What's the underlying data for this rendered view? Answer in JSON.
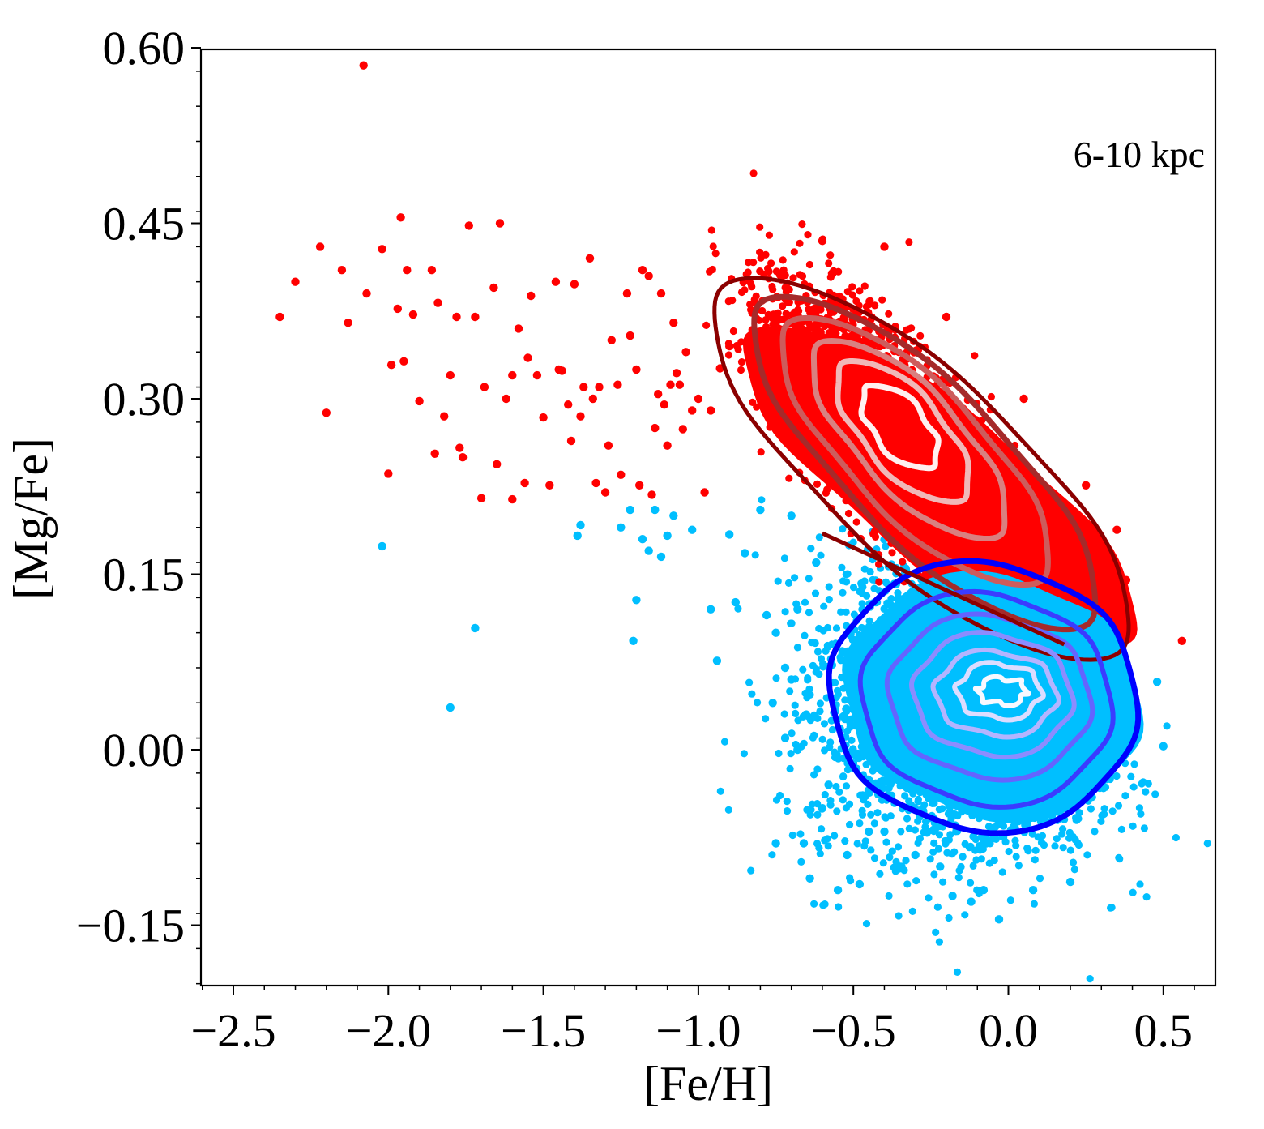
{
  "chart_data": {
    "type": "scatter",
    "title": "",
    "xlabel": "[Fe/H]",
    "ylabel": "[Mg/Fe]",
    "xlim": [
      -2.6,
      0.7
    ],
    "ylim": [
      -0.2,
      0.6
    ],
    "x_ticks": [
      -2.5,
      -2.0,
      -1.5,
      -1.0,
      -0.5,
      0.0,
      0.5
    ],
    "x_tick_labels": [
      "−2.5",
      "−2.0",
      "−1.5",
      "−1.0",
      "−0.5",
      "0.0",
      "0.5"
    ],
    "y_ticks": [
      -0.15,
      0.0,
      0.15,
      0.3,
      0.45,
      0.6
    ],
    "y_tick_labels": [
      "−0.15",
      "0.00",
      "0.15",
      "0.30",
      "0.45",
      "0.60"
    ],
    "grid": false,
    "legend": "none",
    "annotation": "6-10 kpc",
    "colors": {
      "high_alpha_points": "#ff0000",
      "low_alpha_points": "#00bfff",
      "high_alpha_contours": [
        "#8b0000",
        "#a52a2a",
        "#cd5c5c",
        "#d98080",
        "#f0b8b8",
        "#fff0f0"
      ],
      "low_alpha_contours": [
        "#0000ff",
        "#3b3bff",
        "#6464ff",
        "#8c8cff",
        "#b4b4ff",
        "#dcdcff",
        "#f8f8ff"
      ],
      "divider_line": "#8b0000"
    },
    "series": [
      {
        "color": "#ff0000",
        "points": [
          [
            -2.08,
            0.585
          ],
          [
            -2.35,
            0.37
          ],
          [
            -2.3,
            0.4
          ],
          [
            -2.22,
            0.43
          ],
          [
            -2.2,
            0.288
          ],
          [
            -2.15,
            0.41
          ],
          [
            -2.13,
            0.365
          ],
          [
            -2.07,
            0.39
          ],
          [
            -2.02,
            0.428
          ],
          [
            -1.99,
            0.329
          ],
          [
            -1.97,
            0.377
          ],
          [
            -1.96,
            0.455
          ],
          [
            -1.94,
            0.41
          ],
          [
            -1.92,
            0.372
          ],
          [
            -1.9,
            0.298
          ],
          [
            -1.86,
            0.41
          ],
          [
            -1.84,
            0.382
          ],
          [
            -1.82,
            0.285
          ],
          [
            -1.8,
            0.32
          ],
          [
            -1.78,
            0.37
          ],
          [
            -1.76,
            0.25
          ],
          [
            -1.74,
            0.448
          ],
          [
            -1.72,
            0.37
          ],
          [
            -1.69,
            0.31
          ],
          [
            -1.66,
            0.395
          ],
          [
            -1.64,
            0.45
          ],
          [
            -1.62,
            0.3
          ],
          [
            -1.6,
            0.32
          ],
          [
            -1.58,
            0.36
          ],
          [
            -1.56,
            0.228
          ],
          [
            -1.54,
            0.388
          ],
          [
            -1.52,
            0.32
          ],
          [
            -1.5,
            0.284
          ],
          [
            -1.48,
            0.226
          ],
          [
            -1.46,
            0.4
          ],
          [
            -1.44,
            0.324
          ],
          [
            -1.42,
            0.295
          ],
          [
            -1.4,
            0.398
          ],
          [
            -1.37,
            0.31
          ],
          [
            -1.35,
            0.42
          ],
          [
            -1.34,
            0.3
          ],
          [
            -1.32,
            0.31
          ],
          [
            -1.3,
            0.22
          ],
          [
            -1.28,
            0.35
          ],
          [
            -1.25,
            0.235
          ],
          [
            -1.23,
            0.39
          ],
          [
            -1.2,
            0.325
          ],
          [
            -1.18,
            0.41
          ],
          [
            -1.16,
            0.405
          ],
          [
            -1.14,
            0.275
          ],
          [
            -1.12,
            0.39
          ],
          [
            -1.1,
            0.26
          ],
          [
            -1.08,
            0.365
          ],
          [
            -1.06,
            0.312
          ],
          [
            -1.04,
            0.34
          ],
          [
            -1.02,
            0.29
          ],
          [
            -2.0,
            0.236
          ],
          [
            -1.95,
            0.332
          ],
          [
            -1.85,
            0.253
          ],
          [
            -1.77,
            0.258
          ],
          [
            -1.7,
            0.215
          ],
          [
            -1.65,
            0.244
          ],
          [
            -1.6,
            0.214
          ],
          [
            -1.55,
            0.335
          ],
          [
            -1.45,
            0.325
          ],
          [
            -1.41,
            0.264
          ],
          [
            -1.38,
            0.285
          ],
          [
            -1.33,
            0.228
          ],
          [
            -1.29,
            0.26
          ],
          [
            -1.26,
            0.312
          ],
          [
            -1.22,
            0.354
          ],
          [
            -1.19,
            0.226
          ],
          [
            -1.15,
            0.218
          ],
          [
            -1.13,
            0.304
          ],
          [
            -1.11,
            0.295
          ],
          [
            -1.09,
            0.312
          ],
          [
            -1.07,
            0.322
          ],
          [
            -1.05,
            0.274
          ],
          [
            -1.0,
            0.3
          ],
          [
            -0.98,
            0.22
          ],
          [
            -0.96,
            0.29
          ],
          [
            -0.93,
            0.326
          ],
          [
            -0.9,
            0.345
          ],
          [
            0.35,
            0.188
          ],
          [
            0.38,
            0.145
          ],
          [
            0.56,
            0.093
          ],
          [
            0.3,
            0.14
          ],
          [
            0.25,
            0.226
          ],
          [
            0.05,
            0.3
          ],
          [
            -0.2,
            0.37
          ],
          [
            -0.4,
            0.43
          ],
          [
            -0.6,
            0.435
          ]
        ]
      },
      {
        "color": "#00bfff",
        "points": [
          [
            -2.02,
            0.174
          ],
          [
            -1.72,
            0.104
          ],
          [
            -1.8,
            0.036
          ],
          [
            -1.39,
            0.183
          ],
          [
            -1.38,
            0.192
          ],
          [
            -1.25,
            0.19
          ],
          [
            -1.22,
            0.205
          ],
          [
            -1.21,
            0.093
          ],
          [
            -1.2,
            0.128
          ],
          [
            -1.18,
            0.18
          ],
          [
            -1.16,
            0.17
          ],
          [
            -1.14,
            0.205
          ],
          [
            -1.12,
            0.165
          ],
          [
            -1.1,
            0.183
          ],
          [
            -1.08,
            0.2
          ],
          [
            -1.02,
            0.188
          ],
          [
            -0.96,
            0.12
          ],
          [
            -0.94,
            0.076
          ],
          [
            -0.9,
            0.184
          ],
          [
            -0.88,
            0.126
          ],
          [
            -0.85,
            0.168
          ],
          [
            -0.8,
            0.205
          ],
          [
            -0.78,
            0.115
          ],
          [
            -0.75,
            0.1
          ],
          [
            -0.72,
            0.01
          ],
          [
            -0.7,
            0.06
          ],
          [
            -0.68,
            0.0
          ],
          [
            -0.66,
            -0.08
          ],
          [
            -0.64,
            -0.11
          ],
          [
            -0.6,
            -0.05
          ],
          [
            -0.55,
            -0.12
          ],
          [
            -0.52,
            -0.09
          ],
          [
            -0.48,
            -0.115
          ],
          [
            -0.45,
            -0.07
          ],
          [
            -0.4,
            -0.07
          ],
          [
            -0.35,
            -0.1
          ],
          [
            -0.3,
            -0.09
          ],
          [
            -0.22,
            -0.1
          ],
          [
            -0.18,
            -0.125
          ],
          [
            -0.12,
            -0.13
          ],
          [
            -0.08,
            -0.12
          ],
          [
            -0.03,
            -0.145
          ],
          [
            0.08,
            -0.12
          ],
          [
            0.2,
            -0.113
          ],
          [
            0.22,
            -0.06
          ],
          [
            0.4,
            0.02
          ],
          [
            0.5,
            0.003
          ],
          [
            0.48,
            0.058
          ],
          [
            0.3,
            0.11
          ],
          [
            -0.75,
            -0.08
          ],
          [
            -0.58,
            -0.03
          ],
          [
            -0.62,
            0.16
          ],
          [
            -0.7,
            0.2
          ],
          [
            -0.72,
            0.07
          ],
          [
            -0.76,
            0.04
          ],
          [
            -0.68,
            0.12
          ]
        ]
      }
    ]
  }
}
